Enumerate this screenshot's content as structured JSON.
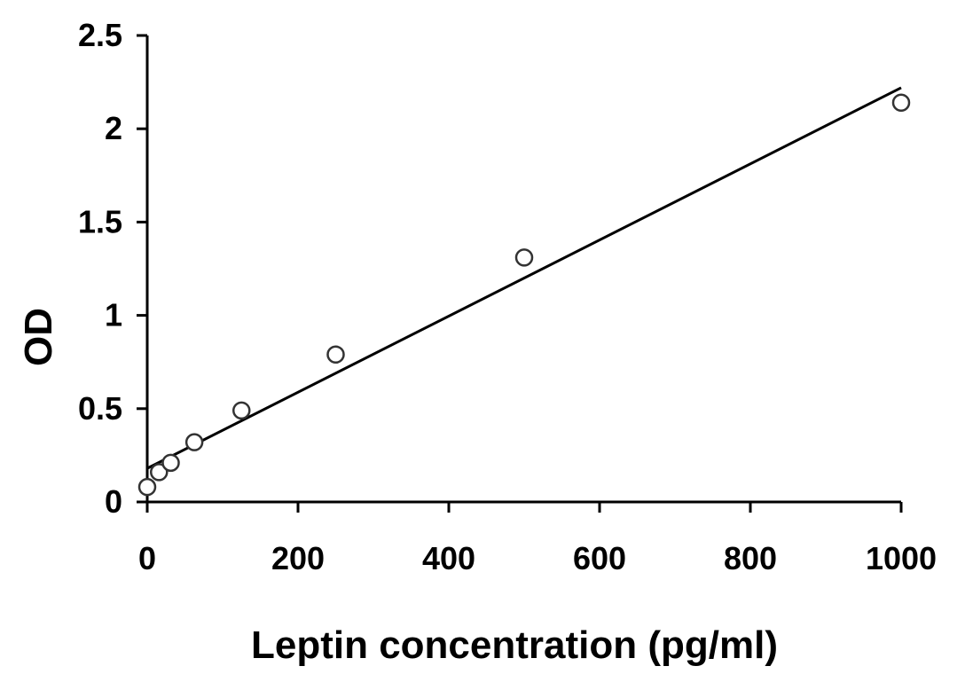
{
  "chart_data": {
    "type": "scatter",
    "title": "",
    "xlabel": "Leptin concentration (pg/ml)",
    "ylabel": "OD",
    "xlim": [
      0,
      1000
    ],
    "ylim": [
      0,
      2.5
    ],
    "x_ticks": [
      0,
      200,
      400,
      600,
      800,
      1000
    ],
    "y_ticks": [
      0,
      0.5,
      1,
      1.5,
      2,
      2.5
    ],
    "x_tick_labels": [
      "0",
      "200",
      "400",
      "600",
      "800",
      "1000"
    ],
    "y_tick_labels": [
      "0",
      "0.5",
      "1",
      "1.5",
      "2",
      "2.5"
    ],
    "grid": false,
    "series": [
      {
        "marker": "open-circle",
        "points": [
          {
            "x": 0,
            "y": 0.08
          },
          {
            "x": 15.6,
            "y": 0.16
          },
          {
            "x": 31.2,
            "y": 0.21
          },
          {
            "x": 62.5,
            "y": 0.32
          },
          {
            "x": 125,
            "y": 0.49
          },
          {
            "x": 250,
            "y": 0.79
          },
          {
            "x": 500,
            "y": 1.31
          },
          {
            "x": 1000,
            "y": 2.14
          }
        ]
      }
    ],
    "trendline": {
      "type": "linear",
      "x": [
        0,
        1000
      ],
      "y": [
        0.18,
        2.22
      ]
    }
  }
}
